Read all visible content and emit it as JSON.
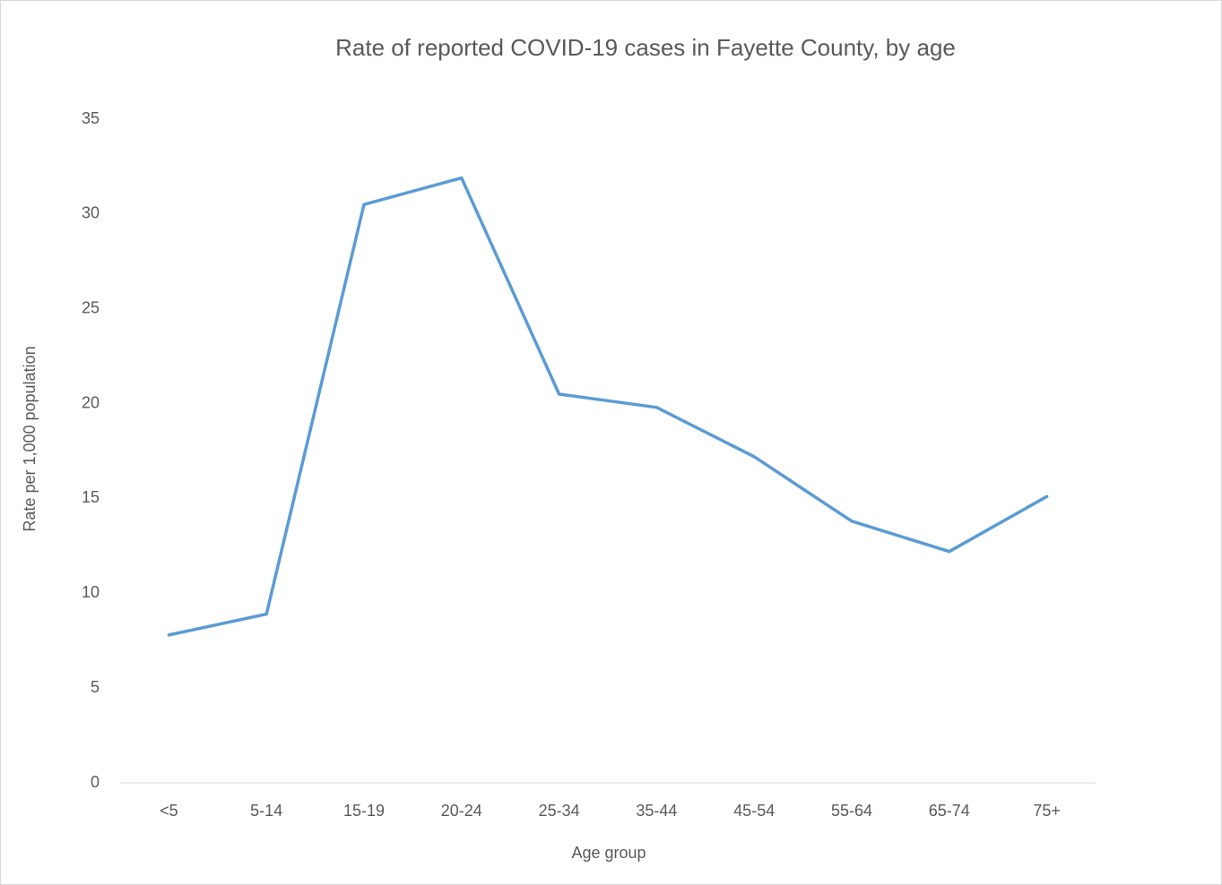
{
  "chart_data": {
    "type": "line",
    "title": "Rate of reported COVID-19 cases in Fayette County, by age",
    "x_label": "Age group",
    "y_label": "Rate per 1,000 population",
    "categories": [
      "<5",
      "5-14",
      "15-19",
      "20-24",
      "25-34",
      "35-44",
      "45-54",
      "55-64",
      "65-74",
      "75+"
    ],
    "values": [
      7.8,
      8.9,
      30.5,
      31.9,
      20.5,
      19.8,
      17.2,
      13.8,
      12.2,
      15.1
    ],
    "color": "#5b9bd5",
    "ylim": [
      0,
      35
    ],
    "yticks": [
      0,
      5,
      10,
      15,
      20,
      25,
      30,
      35
    ],
    "grid": false
  }
}
